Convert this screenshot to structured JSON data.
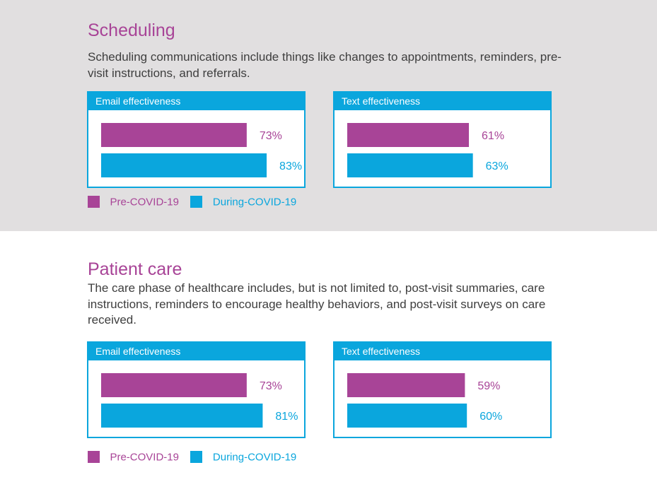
{
  "colors": {
    "pre": "#a84497",
    "during": "#0aa6dd"
  },
  "sections": [
    {
      "title": "Scheduling",
      "description": "Scheduling communications include things like changes to appointments, reminders, pre-visit instructions, and referrals."
    },
    {
      "title": "Patient care",
      "description": "The care phase of healthcare includes, but is not limited to, post-visit summaries, care instructions, reminders to encourage healthy behaviors, and post-visit surveys on care received."
    }
  ],
  "legend": [
    {
      "label": "Pre-COVID-19",
      "color": "#a84497"
    },
    {
      "label": "During-COVID-19",
      "color": "#0aa6dd"
    }
  ],
  "chart_data": [
    {
      "type": "bar",
      "orientation": "horizontal",
      "section": "Scheduling",
      "title": "Email effectiveness",
      "series": [
        {
          "name": "Pre-COVID-19",
          "value": 73,
          "label": "73%",
          "color": "#a84497"
        },
        {
          "name": "During-COVID-19",
          "value": 83,
          "label": "83%",
          "color": "#0aa6dd"
        }
      ]
    },
    {
      "type": "bar",
      "orientation": "horizontal",
      "section": "Scheduling",
      "title": "Text effectiveness",
      "series": [
        {
          "name": "Pre-COVID-19",
          "value": 61,
          "label": "61%",
          "color": "#a84497"
        },
        {
          "name": "During-COVID-19",
          "value": 63,
          "label": "63%",
          "color": "#0aa6dd"
        }
      ]
    },
    {
      "type": "bar",
      "orientation": "horizontal",
      "section": "Patient care",
      "title": "Email effectiveness",
      "series": [
        {
          "name": "Pre-COVID-19",
          "value": 73,
          "label": "73%",
          "color": "#a84497"
        },
        {
          "name": "During-COVID-19",
          "value": 81,
          "label": "81%",
          "color": "#0aa6dd"
        }
      ]
    },
    {
      "type": "bar",
      "orientation": "horizontal",
      "section": "Patient care",
      "title": "Text effectiveness",
      "series": [
        {
          "name": "Pre-COVID-19",
          "value": 59,
          "label": "59%",
          "color": "#a84497"
        },
        {
          "name": "During-COVID-19",
          "value": 60,
          "label": "60%",
          "color": "#0aa6dd"
        }
      ]
    }
  ]
}
